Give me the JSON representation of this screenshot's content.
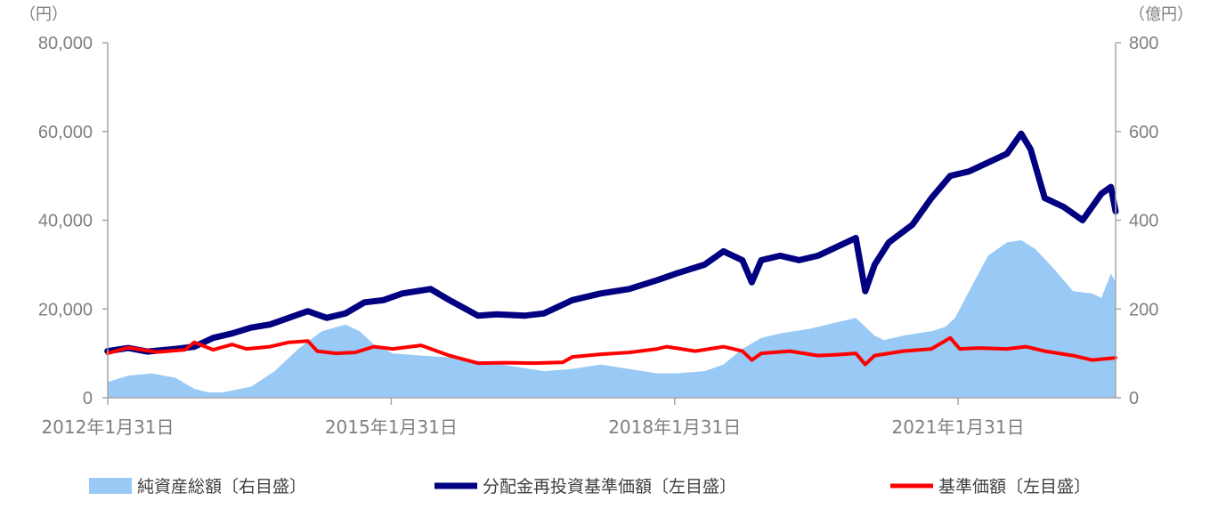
{
  "chart_data": {
    "type": "line",
    "left_unit": "（円）",
    "right_unit": "（億円）",
    "left_ylim": [
      0,
      80000
    ],
    "right_ylim": [
      0,
      800
    ],
    "left_ticks": [
      "0",
      "20,000",
      "40,000",
      "60,000",
      "80,000"
    ],
    "right_ticks": [
      "0",
      "200",
      "400",
      "600",
      "800"
    ],
    "x_tick_labels": [
      "2012年1月31日",
      "2015年1月31日",
      "2018年1月31日",
      "2021年1月31日"
    ],
    "x_tick_positions": [
      2012.083,
      2015.083,
      2018.083,
      2021.083
    ],
    "xlim": [
      2012.083,
      2022.75
    ],
    "grid": false,
    "legend_position": "bottom",
    "colors": {
      "net_assets": "#99c9f5",
      "reinvested_nav": "#000080",
      "nav": "#ff0000",
      "axis": "#a6a6a6",
      "text": "#7f7f7f"
    },
    "series": [
      {
        "name": "純資産総額〔右目盛〕",
        "axis": "right",
        "kind": "area",
        "x": [
          2012.08,
          2012.3,
          2012.55,
          2012.8,
          2013.0,
          2013.15,
          2013.3,
          2013.6,
          2013.85,
          2014.1,
          2014.35,
          2014.6,
          2014.75,
          2014.9,
          2015.1,
          2015.4,
          2015.8,
          2016.1,
          2016.4,
          2016.7,
          2017.0,
          2017.3,
          2017.6,
          2017.9,
          2018.1,
          2018.4,
          2018.6,
          2018.8,
          2019.0,
          2019.2,
          2019.5,
          2019.8,
          2020.0,
          2020.2,
          2020.3,
          2020.5,
          2020.8,
          2020.95,
          2021.05,
          2021.2,
          2021.4,
          2021.6,
          2021.75,
          2021.9,
          2022.1,
          2022.3,
          2022.5,
          2022.6,
          2022.7,
          2022.75
        ],
        "values": [
          35,
          50,
          55,
          45,
          20,
          12,
          12,
          25,
          60,
          110,
          150,
          165,
          150,
          120,
          100,
          95,
          90,
          80,
          70,
          60,
          65,
          75,
          65,
          55,
          55,
          60,
          75,
          110,
          135,
          145,
          155,
          170,
          180,
          140,
          130,
          140,
          150,
          160,
          180,
          240,
          320,
          350,
          355,
          335,
          290,
          240,
          235,
          225,
          280,
          260
        ]
      },
      {
        "name": "分配金再投資基準価額〔左目盛〕",
        "axis": "left",
        "kind": "line",
        "x": [
          2012.08,
          2012.3,
          2012.5,
          2012.8,
          2013.0,
          2013.2,
          2013.4,
          2013.6,
          2013.8,
          2014.0,
          2014.2,
          2014.4,
          2014.6,
          2014.8,
          2015.0,
          2015.2,
          2015.5,
          2015.7,
          2016.0,
          2016.2,
          2016.5,
          2016.7,
          2017.0,
          2017.3,
          2017.6,
          2017.9,
          2018.1,
          2018.4,
          2018.6,
          2018.8,
          2018.9,
          2019.0,
          2019.2,
          2019.4,
          2019.6,
          2019.8,
          2020.0,
          2020.1,
          2020.2,
          2020.35,
          2020.6,
          2020.8,
          2021.0,
          2021.2,
          2021.4,
          2021.6,
          2021.75,
          2021.85,
          2022.0,
          2022.2,
          2022.4,
          2022.6,
          2022.7,
          2022.75
        ],
        "values": [
          10500,
          11200,
          10400,
          11000,
          11500,
          13500,
          14500,
          15800,
          16500,
          18000,
          19500,
          18000,
          19000,
          21500,
          22000,
          23500,
          24500,
          22000,
          18500,
          18800,
          18500,
          19000,
          22000,
          23500,
          24500,
          26500,
          28000,
          30000,
          33000,
          31000,
          26000,
          31000,
          32000,
          31000,
          32000,
          34000,
          36000,
          24000,
          30000,
          35000,
          39000,
          45000,
          50000,
          51000,
          53000,
          55000,
          59500,
          56000,
          45000,
          43000,
          40000,
          46000,
          47500,
          42000
        ]
      },
      {
        "name": "基準価額〔左目盛〕",
        "axis": "left",
        "kind": "line",
        "x": [
          2012.08,
          2012.3,
          2012.6,
          2012.9,
          2013.0,
          2013.2,
          2013.4,
          2013.55,
          2013.8,
          2014.0,
          2014.2,
          2014.3,
          2014.5,
          2014.7,
          2014.9,
          2015.1,
          2015.4,
          2015.7,
          2016.0,
          2016.3,
          2016.6,
          2016.9,
          2017.0,
          2017.3,
          2017.6,
          2017.9,
          2018.0,
          2018.3,
          2018.6,
          2018.8,
          2018.9,
          2019.0,
          2019.3,
          2019.6,
          2019.8,
          2020.0,
          2020.1,
          2020.2,
          2020.5,
          2020.8,
          2021.0,
          2021.1,
          2021.3,
          2021.6,
          2021.8,
          2022.0,
          2022.3,
          2022.5,
          2022.75
        ],
        "values": [
          10000,
          11300,
          10300,
          10800,
          12500,
          10800,
          12000,
          11000,
          11500,
          12500,
          12800,
          10500,
          10000,
          10200,
          11500,
          11000,
          11800,
          9500,
          7800,
          7900,
          7800,
          8000,
          9200,
          9800,
          10200,
          11000,
          11500,
          10500,
          11500,
          10500,
          8500,
          10000,
          10500,
          9500,
          9700,
          10000,
          7500,
          9500,
          10500,
          11000,
          13500,
          11000,
          11200,
          11000,
          11500,
          10500,
          9500,
          8500,
          9000
        ]
      }
    ]
  }
}
